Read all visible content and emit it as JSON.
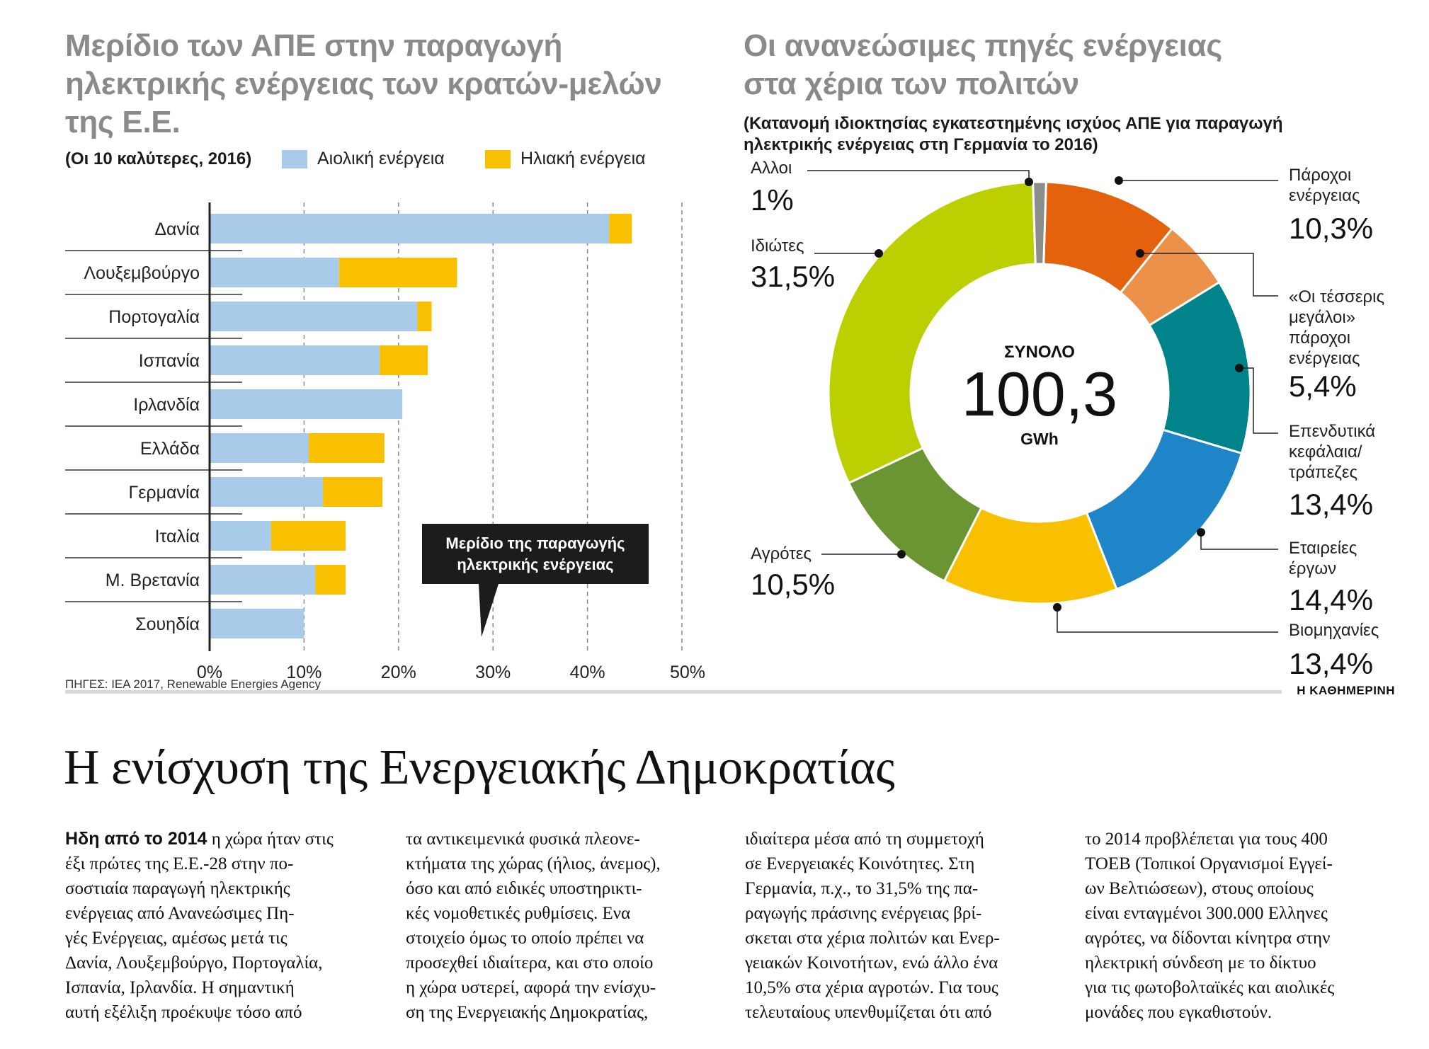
{
  "left_title": [
    "Μερίδιο των ΑΠΕ στην παραγωγή",
    "ηλεκτρικής ενέργειας των κρατών-μελών",
    "της Ε.Ε."
  ],
  "left_subtitle": "(Οι 10 καλύτερες, 2016)",
  "right_title": [
    "Οι ανανεώσιμες πηγές ενέργειας",
    "στα χέρια των πολιτών"
  ],
  "right_subtitle": [
    "(Κατανομή ιδιοκτησίας εγκατεστημένης ισχύος ΑΠΕ για παραγωγή",
    "ηλεκτρικής ενέργειας στη Γερμανία το 2016)"
  ],
  "sources": "ΠΗΓΕΣ: IEA 2017, Renewable Energies Agency",
  "brand": "Η ΚΑΘΗΜΕΡΙΝΗ",
  "callout": [
    "Μερίδιο της παραγωγής",
    "ηλεκτρικής ενέργειας"
  ],
  "chart_data": [
    {
      "type": "bar",
      "orientation": "horizontal",
      "stacked": true,
      "categories": [
        "Δανία",
        "Λουξεμβούργο",
        "Πορτογαλία",
        "Ισπανία",
        "Ιρλανδία",
        "Ελλάδα",
        "Γερμανία",
        "Ιταλία",
        "Μ. Βρετανία",
        "Σουηδία"
      ],
      "series": [
        {
          "name": "Αιολική ενέργεια",
          "color": "#a8cbe9",
          "values": [
            42.3,
            13.7,
            22,
            18,
            20.4,
            10.5,
            12,
            6.5,
            11.2,
            10
          ]
        },
        {
          "name": "Ηλιακή ενέργεια",
          "color": "#f8c000",
          "values": [
            2.4,
            12.5,
            1.5,
            5.1,
            0,
            8,
            6.3,
            7.9,
            3.2,
            0
          ]
        }
      ],
      "xlim": [
        0,
        50
      ],
      "xticks": [
        "0%",
        "10%",
        "20%",
        "30%",
        "40%",
        "50%"
      ],
      "grid": "vertical dashed",
      "legend": "top"
    },
    {
      "type": "pie",
      "donut": true,
      "center_label": "ΣΥΝΟΛΟ",
      "center_value": "100,3",
      "center_unit": "GWh",
      "slices": [
        {
          "label": "Πάροχοι ενέργειας",
          "value": 10.3,
          "display": "10,3%",
          "color": "#e4620e"
        },
        {
          "label": "«Οι τέσσερις μεγάλοι» πάροχοι ενέργειας",
          "value": 5.4,
          "display": "5,4%",
          "color": "#ec9149"
        },
        {
          "label": "Επενδυτικά κεφάλαια/ τράπεζες",
          "value": 13.4,
          "display": "13,4%",
          "color": "#00838b"
        },
        {
          "label": "Εταιρείες έργων",
          "value": 14.4,
          "display": "14,4%",
          "color": "#1e86c8"
        },
        {
          "label": "Βιομηχανίες",
          "value": 13.4,
          "display": "13,4%",
          "color": "#f8c000"
        },
        {
          "label": "Αγρότες",
          "value": 10.5,
          "display": "10,5%",
          "color": "#6a9532"
        },
        {
          "label": "Ιδιώτες",
          "value": 31.5,
          "display": "31,5%",
          "color": "#bccf00"
        },
        {
          "label": "Αλλοι",
          "value": 1,
          "display": "1%",
          "color": "#8c8c8c"
        }
      ]
    }
  ],
  "article": {
    "headline": "Η ενίσχυση της Ενεργειακής Δημοκρατίας",
    "lead": "Ηδη από το 2014",
    "columns": [
      [
        "η χώρα ήταν στις",
        "έξι πρώτες της Ε.Ε.-28 στην πο-",
        "σοστιαία παραγωγή ηλεκτρικής",
        "ενέργειας από Ανανεώσιμες Πη-",
        "γές Ενέργειας, αμέσως μετά τις",
        "Δανία, Λουξεμβούργο, Πορτογαλία,",
        "Ισπανία, Ιρλανδία. Η σημαντική",
        "αυτή εξέλιξη προέκυψε τόσο από"
      ],
      [
        "τα αντικειμενικά φυσικά πλεονε-",
        "κτήματα της χώρας (ήλιος, άνεμος),",
        "όσο και από ειδικές υποστηρικτι-",
        "κές νομοθετικές ρυθμίσεις. Ενα",
        "στοιχείο όμως το οποίο πρέπει να",
        "προσεχθεί ιδιαίτερα, και στο οποίο",
        "η χώρα υστερεί, αφορά την ενίσχυ-",
        "ση της Ενεργειακής Δημοκρατίας,"
      ],
      [
        "ιδιαίτερα μέσα από τη συμμετοχή",
        "σε Ενεργειακές Κοινότητες. Στη",
        "Γερμανία, π.χ., το 31,5% της πα-",
        "ραγωγής πράσινης ενέργειας βρί-",
        "σκεται στα χέρια πολιτών και Ενερ-",
        "γειακών Κοινοτήτων, ενώ άλλο ένα",
        "10,5% στα χέρια αγροτών. Για τους",
        "τελευταίους υπενθυμίζεται ότι από"
      ],
      [
        "το 2014 προβλέπεται για τους 400",
        "ΤΟΕΒ (Τοπικοί Οργανισμοί Εγγεί-",
        "ων Βελτιώσεων), στους οποίους",
        "είναι ενταγμένοι 300.000 Ελληνες",
        "αγρότες, να δίδονται κίνητρα στην",
        "ηλεκτρική σύνδεση με το δίκτυο",
        "για τις φωτοβολταϊκές και αιολικές",
        "μονάδες που εγκαθιστούν."
      ]
    ]
  }
}
